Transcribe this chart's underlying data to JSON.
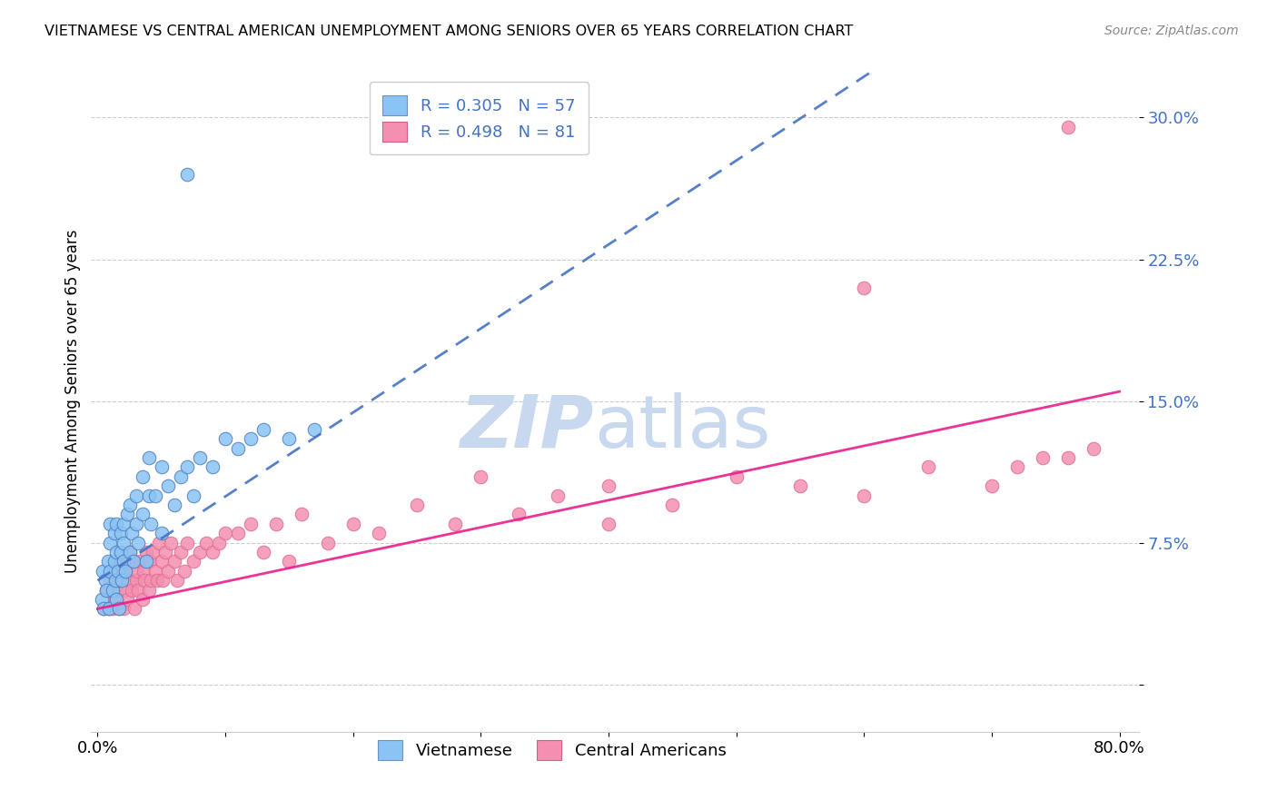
{
  "title": "VIETNAMESE VS CENTRAL AMERICAN UNEMPLOYMENT AMONG SENIORS OVER 65 YEARS CORRELATION CHART",
  "source": "Source: ZipAtlas.com",
  "ylabel": "Unemployment Among Seniors over 65 years",
  "xlim": [
    -0.005,
    0.815
  ],
  "ylim": [
    -0.025,
    0.325
  ],
  "yticks": [
    0.0,
    0.075,
    0.15,
    0.225,
    0.3
  ],
  "ytick_labels": [
    "",
    "7.5%",
    "15.0%",
    "22.5%",
    "30.0%"
  ],
  "xtick_vals": [
    0.0,
    0.1,
    0.2,
    0.3,
    0.4,
    0.5,
    0.6,
    0.7,
    0.8
  ],
  "xtick_labels": [
    "0.0%",
    "",
    "",
    "",
    "",
    "",
    "",
    "",
    "80.0%"
  ],
  "color_vietnamese": "#89C4F4",
  "color_central": "#F48FB1",
  "color_trendline_viet": "#4472C4",
  "color_trendline_central": "#E91E8C",
  "watermark_color": "#C8D8EE",
  "background_color": "#FFFFFF",
  "trendline_viet_x0": 0.0,
  "trendline_viet_y0": 0.055,
  "trendline_viet_x1": 0.18,
  "trendline_viet_y1": 0.135,
  "trendline_central_x0": 0.0,
  "trendline_central_y0": 0.04,
  "trendline_central_x1": 0.8,
  "trendline_central_y1": 0.155,
  "viet_scatter_x": [
    0.003,
    0.004,
    0.005,
    0.006,
    0.007,
    0.008,
    0.009,
    0.01,
    0.01,
    0.01,
    0.012,
    0.013,
    0.013,
    0.014,
    0.015,
    0.015,
    0.015,
    0.016,
    0.017,
    0.018,
    0.018,
    0.019,
    0.02,
    0.02,
    0.02,
    0.022,
    0.023,
    0.025,
    0.025,
    0.027,
    0.028,
    0.03,
    0.03,
    0.032,
    0.035,
    0.035,
    0.038,
    0.04,
    0.04,
    0.042,
    0.045,
    0.05,
    0.05,
    0.055,
    0.06,
    0.065,
    0.07,
    0.075,
    0.08,
    0.09,
    0.1,
    0.11,
    0.12,
    0.13,
    0.15,
    0.17,
    0.07
  ],
  "viet_scatter_y": [
    0.045,
    0.06,
    0.04,
    0.055,
    0.05,
    0.065,
    0.04,
    0.06,
    0.075,
    0.085,
    0.05,
    0.065,
    0.08,
    0.055,
    0.045,
    0.07,
    0.085,
    0.06,
    0.04,
    0.07,
    0.08,
    0.055,
    0.065,
    0.075,
    0.085,
    0.06,
    0.09,
    0.07,
    0.095,
    0.08,
    0.065,
    0.085,
    0.1,
    0.075,
    0.09,
    0.11,
    0.065,
    0.1,
    0.12,
    0.085,
    0.1,
    0.08,
    0.115,
    0.105,
    0.095,
    0.11,
    0.115,
    0.1,
    0.12,
    0.115,
    0.13,
    0.125,
    0.13,
    0.135,
    0.13,
    0.135,
    0.27
  ],
  "central_scatter_x": [
    0.005,
    0.007,
    0.009,
    0.01,
    0.012,
    0.013,
    0.014,
    0.015,
    0.016,
    0.017,
    0.018,
    0.019,
    0.02,
    0.02,
    0.021,
    0.022,
    0.023,
    0.025,
    0.025,
    0.027,
    0.028,
    0.029,
    0.03,
    0.031,
    0.032,
    0.033,
    0.035,
    0.036,
    0.037,
    0.038,
    0.04,
    0.041,
    0.042,
    0.043,
    0.045,
    0.047,
    0.048,
    0.05,
    0.051,
    0.053,
    0.055,
    0.057,
    0.06,
    0.062,
    0.065,
    0.068,
    0.07,
    0.075,
    0.08,
    0.085,
    0.09,
    0.095,
    0.1,
    0.11,
    0.12,
    0.13,
    0.14,
    0.15,
    0.16,
    0.18,
    0.2,
    0.22,
    0.25,
    0.28,
    0.3,
    0.33,
    0.36,
    0.4,
    0.45,
    0.5,
    0.55,
    0.6,
    0.65,
    0.7,
    0.72,
    0.74,
    0.76,
    0.78,
    0.6,
    0.4,
    0.76
  ],
  "central_scatter_y": [
    0.04,
    0.05,
    0.04,
    0.055,
    0.04,
    0.06,
    0.045,
    0.05,
    0.065,
    0.04,
    0.055,
    0.06,
    0.04,
    0.065,
    0.05,
    0.06,
    0.045,
    0.055,
    0.07,
    0.05,
    0.065,
    0.04,
    0.055,
    0.06,
    0.05,
    0.065,
    0.045,
    0.06,
    0.055,
    0.07,
    0.05,
    0.065,
    0.055,
    0.07,
    0.06,
    0.055,
    0.075,
    0.065,
    0.055,
    0.07,
    0.06,
    0.075,
    0.065,
    0.055,
    0.07,
    0.06,
    0.075,
    0.065,
    0.07,
    0.075,
    0.07,
    0.075,
    0.08,
    0.08,
    0.085,
    0.07,
    0.085,
    0.065,
    0.09,
    0.075,
    0.085,
    0.08,
    0.095,
    0.085,
    0.11,
    0.09,
    0.1,
    0.105,
    0.095,
    0.11,
    0.105,
    0.1,
    0.115,
    0.105,
    0.115,
    0.12,
    0.12,
    0.125,
    0.21,
    0.085,
    0.295
  ]
}
